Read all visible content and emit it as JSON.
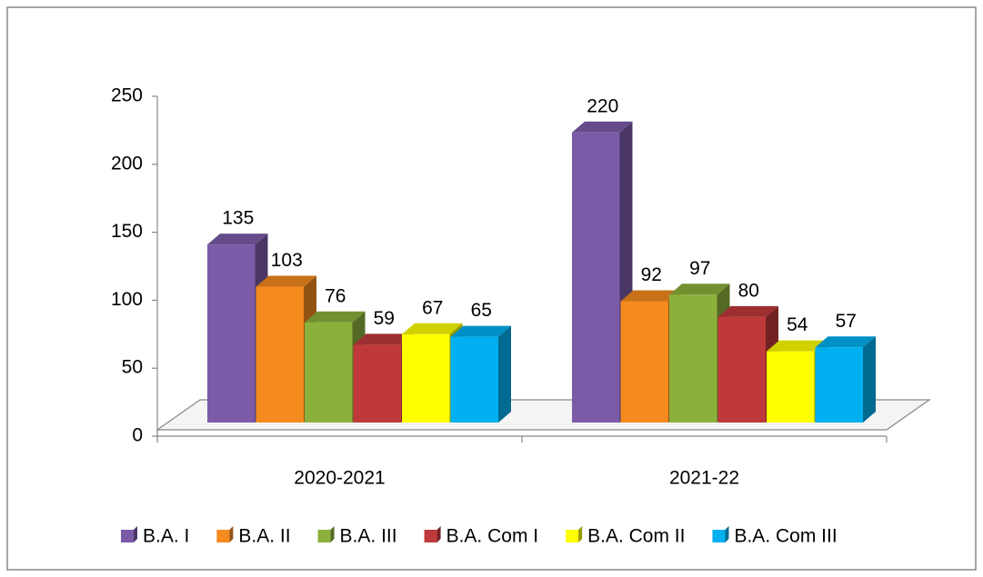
{
  "chart_data": {
    "type": "bar3d",
    "categories": [
      "2020-2021",
      "2021-22"
    ],
    "series": [
      {
        "name": "B.A. I",
        "color": "#7b5ba8",
        "values": [
          135,
          220
        ]
      },
      {
        "name": "B.A. II",
        "color": "#f58a1f",
        "values": [
          103,
          92
        ]
      },
      {
        "name": "B.A. III",
        "color": "#8cb03c",
        "values": [
          76,
          97
        ]
      },
      {
        "name": "B.A. Com I",
        "color": "#c0393a",
        "values": [
          59,
          80
        ]
      },
      {
        "name": "B.A. Com II",
        "color": "#ffff00",
        "values": [
          67,
          54
        ]
      },
      {
        "name": "B.A. Com III",
        "color": "#00b0f0",
        "values": [
          65,
          57
        ]
      }
    ],
    "ylim": [
      0,
      250
    ],
    "yticks": [
      0,
      50,
      100,
      150,
      200,
      250
    ],
    "legend": "bottom"
  }
}
